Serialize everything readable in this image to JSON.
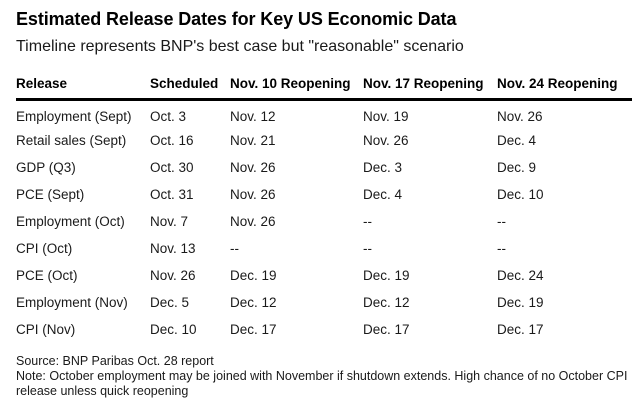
{
  "chart_data": {
    "type": "table",
    "title": "Estimated Release Dates for Key US Economic Data",
    "subtitle": "Timeline represents BNP's best case but \"reasonable\" scenario",
    "columns": [
      "Release",
      "Scheduled",
      "Nov. 10 Reopening",
      "Nov. 17 Reopening",
      "Nov. 24 Reopening"
    ],
    "rows": [
      [
        "Employment (Sept)",
        "Oct. 3",
        "Nov. 12",
        "Nov. 19",
        "Nov. 26"
      ],
      [
        "Retail sales (Sept)",
        "Oct. 16",
        "Nov. 21",
        "Nov. 26",
        "Dec. 4"
      ],
      [
        "GDP (Q3)",
        "Oct. 30",
        "Nov. 26",
        "Dec. 3",
        "Dec. 9"
      ],
      [
        "PCE (Sept)",
        "Oct. 31",
        "Nov. 26",
        "Dec. 4",
        "Dec. 10"
      ],
      [
        "Employment (Oct)",
        "Nov. 7",
        "Nov. 26",
        "--",
        "--"
      ],
      [
        "CPI (Oct)",
        "Nov. 13",
        "--",
        "--",
        "--"
      ],
      [
        "PCE (Oct)",
        "Nov. 26",
        "Dec. 19",
        "Dec. 19",
        "Dec. 24"
      ],
      [
        "Employment (Nov)",
        "Dec. 5",
        "Dec. 12",
        "Dec. 12",
        "Dec. 19"
      ],
      [
        "CPI (Nov)",
        "Dec. 10",
        "Dec. 17",
        "Dec. 17",
        "Dec. 17"
      ]
    ],
    "source": "Source: BNP Paribas Oct. 28 report",
    "note": "Note: October employment may be joined with November if shutdown extends. High chance of no October CPI release unless quick reopening",
    "layout_hints": {
      "grid": "header-rule-only",
      "header_rule_color": "#000000"
    },
    "colors": {
      "text": "#1a1a1a",
      "title": "#000000",
      "rule": "#000000",
      "background": "#ffffff"
    }
  }
}
